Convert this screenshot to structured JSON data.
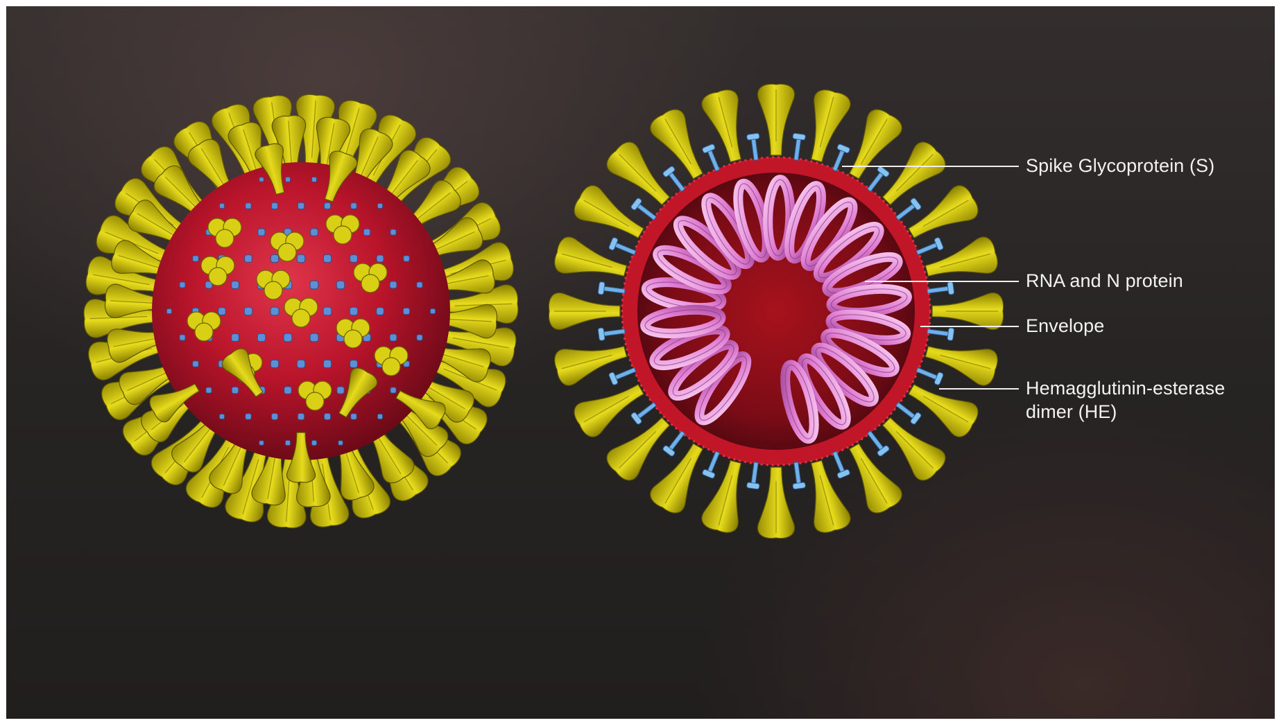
{
  "labels": {
    "spike": "Spike Glycoprotein (S)",
    "rna": "RNA and N protein",
    "envelope": "Envelope",
    "he_line1": "Hemagglutinin-esterase",
    "he_line2": "dimer (HE)"
  },
  "colors": {
    "background": "#2a2524",
    "membrane": "#c4172a",
    "spike": "#d4c80a",
    "he_protein": "#5fa0e0",
    "rna": "#e58ad6",
    "label_text": "#f2f2f2"
  }
}
